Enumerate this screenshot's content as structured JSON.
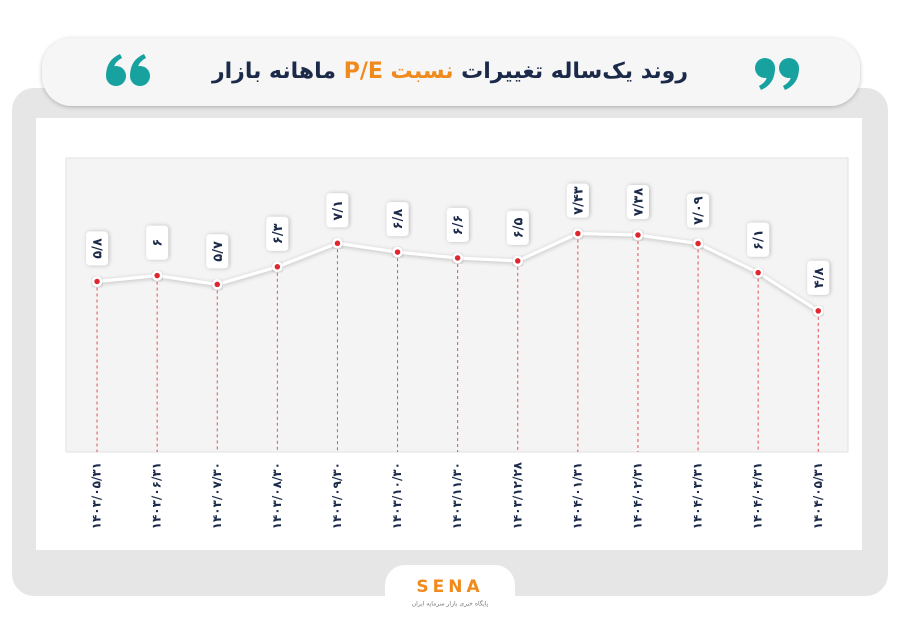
{
  "header": {
    "title_start": "روند یک‌ساله تغییرات",
    "title_highlight": "نسبت P/E",
    "title_end": "ماهانه بازار"
  },
  "chart_data": {
    "type": "line",
    "categories": [
      "۱۴۰۳/۰۵/۳۱",
      "۱۴۰۳/۰۶/۳۱",
      "۱۴۰۳/۰۷/۳۰",
      "۱۴۰۳/۰۸/۳۰",
      "۱۴۰۳/۰۹/۳۰",
      "۱۴۰۳/۱۰/۳۰",
      "۱۴۰۳/۱۱/۳۰",
      "۱۴۰۳/۱۲/۲۸",
      "۱۴۰۴/۰۱/۳۱",
      "۱۴۰۴/۰۲/۳۱",
      "۱۴۰۴/۰۳/۳۱",
      "۱۴۰۴/۰۴/۳۱",
      "۱۴۰۴/۰۵/۳۱"
    ],
    "values": [
      5.8,
      6,
      5.7,
      6.3,
      7.1,
      6.8,
      6.6,
      6.5,
      7.43,
      7.38,
      7.09,
      6.1,
      4.8
    ],
    "value_labels": [
      "۵/۸",
      "۶",
      "۵/۷",
      "۶/۳",
      "۷/۱",
      "۶/۸",
      "۶/۶",
      "۶/۵",
      "۷/۴۳",
      "۷/۳۸",
      "۷/۰۹",
      "۶/۱",
      "۴/۸"
    ],
    "color": "#ffffff",
    "marker_color": "#e0282e",
    "ylim": [
      0,
      10
    ]
  },
  "logo": {
    "name": "SENA",
    "tagline": "پایگاه خبری بازار سرمایه ایران"
  }
}
